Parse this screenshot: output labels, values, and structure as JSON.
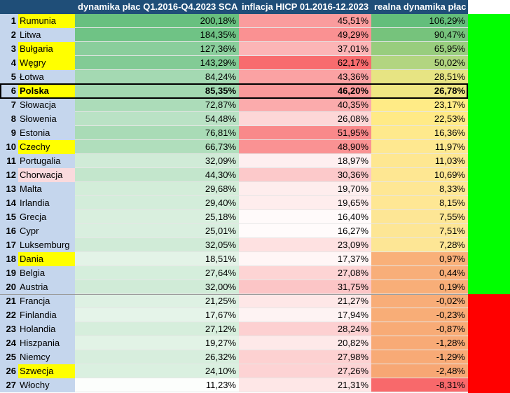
{
  "chart_data": {
    "type": "table",
    "columns": [
      "",
      "",
      "dynamika płac Q1.2016-Q4.2023 SCA",
      "inflacja HICP 01.2016-12.2023",
      "realna dynamika płac"
    ],
    "rows": [
      {
        "rank": "1",
        "country": "Rumunia",
        "wages": "200,18%",
        "inflation": "45,51%",
        "real": "106,29%",
        "w": 200.18,
        "i": 45.51,
        "r": 106.29,
        "highlight": true
      },
      {
        "rank": "2",
        "country": "Litwa",
        "wages": "184,35%",
        "inflation": "49,29%",
        "real": "90,47%",
        "w": 184.35,
        "i": 49.29,
        "r": 90.47,
        "highlight": false
      },
      {
        "rank": "3",
        "country": "Bułgaria",
        "wages": "127,36%",
        "inflation": "37,01%",
        "real": "65,95%",
        "w": 127.36,
        "i": 37.01,
        "r": 65.95,
        "highlight": true
      },
      {
        "rank": "4",
        "country": "Węgry",
        "wages": "143,29%",
        "inflation": "62,17%",
        "real": "50,02%",
        "w": 143.29,
        "i": 62.17,
        "r": 50.02,
        "highlight": true
      },
      {
        "rank": "5",
        "country": "Łotwa",
        "wages": "84,24%",
        "inflation": "43,36%",
        "real": "28,51%",
        "w": 84.24,
        "i": 43.36,
        "r": 28.51,
        "highlight": false
      },
      {
        "rank": "6",
        "country": "Polska",
        "wages": "85,35%",
        "inflation": "46,20%",
        "real": "26,78%",
        "w": 85.35,
        "i": 46.2,
        "r": 26.78,
        "highlight": true,
        "bold": true
      },
      {
        "rank": "7",
        "country": "Słowacja",
        "wages": "72,87%",
        "inflation": "40,35%",
        "real": "23,17%",
        "w": 72.87,
        "i": 40.35,
        "r": 23.17,
        "highlight": false
      },
      {
        "rank": "8",
        "country": "Słowenia",
        "wages": "54,48%",
        "inflation": "26,08%",
        "real": "22,53%",
        "w": 54.48,
        "i": 26.08,
        "r": 22.53,
        "highlight": false
      },
      {
        "rank": "9",
        "country": "Estonia",
        "wages": "76,81%",
        "inflation": "51,95%",
        "real": "16,36%",
        "w": 76.81,
        "i": 51.95,
        "r": 16.36,
        "highlight": false
      },
      {
        "rank": "10",
        "country": "Czechy",
        "wages": "66,73%",
        "inflation": "48,90%",
        "real": "11,97%",
        "w": 66.73,
        "i": 48.9,
        "r": 11.97,
        "highlight": true
      },
      {
        "rank": "11",
        "country": "Portugalia",
        "wages": "32,09%",
        "inflation": "18,97%",
        "real": "11,03%",
        "w": 32.09,
        "i": 18.97,
        "r": 11.03,
        "highlight": false
      },
      {
        "rank": "12",
        "country": "Chorwacja",
        "wages": "44,30%",
        "inflation": "30,36%",
        "real": "10,69%",
        "w": 44.3,
        "i": 30.36,
        "r": 10.69,
        "highlight": false,
        "pink": true
      },
      {
        "rank": "13",
        "country": "Malta",
        "wages": "29,68%",
        "inflation": "19,70%",
        "real": "8,33%",
        "w": 29.68,
        "i": 19.7,
        "r": 8.33,
        "highlight": false
      },
      {
        "rank": "14",
        "country": "Irlandia",
        "wages": "29,40%",
        "inflation": "19,65%",
        "real": "8,15%",
        "w": 29.4,
        "i": 19.65,
        "r": 8.15,
        "highlight": false
      },
      {
        "rank": "15",
        "country": "Grecja",
        "wages": "25,18%",
        "inflation": "16,40%",
        "real": "7,55%",
        "w": 25.18,
        "i": 16.4,
        "r": 7.55,
        "highlight": false
      },
      {
        "rank": "16",
        "country": "Cypr",
        "wages": "25,01%",
        "inflation": "16,27%",
        "real": "7,51%",
        "w": 25.01,
        "i": 16.27,
        "r": 7.51,
        "highlight": false
      },
      {
        "rank": "17",
        "country": "Luksemburg",
        "wages": "32,05%",
        "inflation": "23,09%",
        "real": "7,28%",
        "w": 32.05,
        "i": 23.09,
        "r": 7.28,
        "highlight": false
      },
      {
        "rank": "18",
        "country": "Dania",
        "wages": "18,51%",
        "inflation": "17,37%",
        "real": "0,97%",
        "w": 18.51,
        "i": 17.37,
        "r": 0.97,
        "highlight": true
      },
      {
        "rank": "19",
        "country": "Belgia",
        "wages": "27,64%",
        "inflation": "27,08%",
        "real": "0,44%",
        "w": 27.64,
        "i": 27.08,
        "r": 0.44,
        "highlight": false
      },
      {
        "rank": "20",
        "country": "Austria",
        "wages": "32,00%",
        "inflation": "31,75%",
        "real": "0,19%",
        "w": 32.0,
        "i": 31.75,
        "r": 0.19,
        "highlight": false
      },
      {
        "rank": "21",
        "country": "Francja",
        "wages": "21,25%",
        "inflation": "21,27%",
        "real": "-0,02%",
        "w": 21.25,
        "i": 21.27,
        "r": -0.02,
        "highlight": false
      },
      {
        "rank": "22",
        "country": "Finlandia",
        "wages": "17,67%",
        "inflation": "17,94%",
        "real": "-0,23%",
        "w": 17.67,
        "i": 17.94,
        "r": -0.23,
        "highlight": false
      },
      {
        "rank": "23",
        "country": "Holandia",
        "wages": "27,12%",
        "inflation": "28,24%",
        "real": "-0,87%",
        "w": 27.12,
        "i": 28.24,
        "r": -0.87,
        "highlight": false
      },
      {
        "rank": "24",
        "country": "Hiszpania",
        "wages": "19,27%",
        "inflation": "20,82%",
        "real": "-1,28%",
        "w": 19.27,
        "i": 20.82,
        "r": -1.28,
        "highlight": false
      },
      {
        "rank": "25",
        "country": "Niemcy",
        "wages": "26,32%",
        "inflation": "27,98%",
        "real": "-1,29%",
        "w": 26.32,
        "i": 27.98,
        "r": -1.29,
        "highlight": false
      },
      {
        "rank": "26",
        "country": "Szwecja",
        "wages": "24,10%",
        "inflation": "27,26%",
        "real": "-2,48%",
        "w": 24.1,
        "i": 27.26,
        "r": -2.48,
        "highlight": true
      },
      {
        "rank": "27",
        "country": "Włochy",
        "wages": "11,23%",
        "inflation": "21,31%",
        "real": "-8,31%",
        "w": 11.23,
        "i": 21.31,
        "r": -8.31,
        "highlight": false
      }
    ]
  },
  "colors": {
    "header_bg": "#1f4e78",
    "header_text": "#ffffff",
    "rank_bg": "#c5d6ed",
    "highlight_yellow": "#ffff00",
    "highlight_pink": "#fadadd",
    "positive_indicator": "#00ff00",
    "negative_indicator": "#ff0000",
    "wage_scale_max": "#63be7b",
    "inflation_scale_max": "#f8696b",
    "real_scale_max": "#63be7b",
    "real_scale_mid": "#ffeb84",
    "real_scale_min": "#f8696b"
  }
}
